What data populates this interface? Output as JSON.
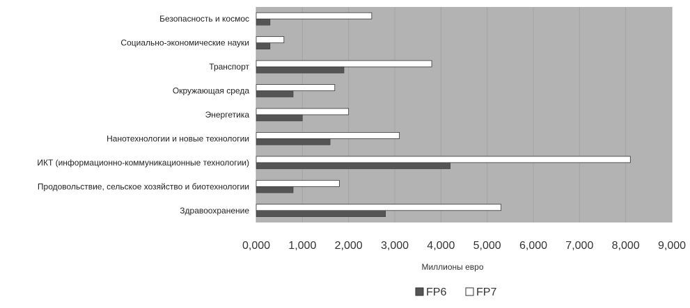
{
  "chart_data": {
    "type": "bar",
    "orientation": "horizontal",
    "categories": [
      "Безопасность и космос",
      "Социально-экономические науки",
      "Транспорт",
      "Окружающая среда",
      "Энергетика",
      "Нанотехнологии и новые технологии",
      "ИКТ (информационно-коммуникационные технологии)",
      "Продовольствие, сельское хозяйство и биотехнологии",
      "Здравоохранение"
    ],
    "series": [
      {
        "name": "FP6",
        "color": "#555555",
        "values": [
          300,
          300,
          1900,
          800,
          1000,
          1600,
          4200,
          800,
          2800
        ]
      },
      {
        "name": "FP7",
        "color": "#ffffff",
        "values": [
          2500,
          600,
          3800,
          1700,
          2000,
          3100,
          8100,
          1800,
          5300
        ]
      }
    ],
    "xlabel": "Миллионы евро",
    "ylabel": "",
    "xlim": [
      0,
      9000
    ],
    "xticks": [
      0,
      1000,
      2000,
      3000,
      4000,
      5000,
      6000,
      7000,
      8000,
      9000
    ],
    "tick_labels": [
      "0,000",
      "1,000",
      "2,000",
      "3,000",
      "4,000",
      "5,000",
      "6,000",
      "7,000",
      "8,000",
      "9,000"
    ],
    "grid": true,
    "plot_background": "#b3b3b3",
    "legend_position": "bottom"
  }
}
